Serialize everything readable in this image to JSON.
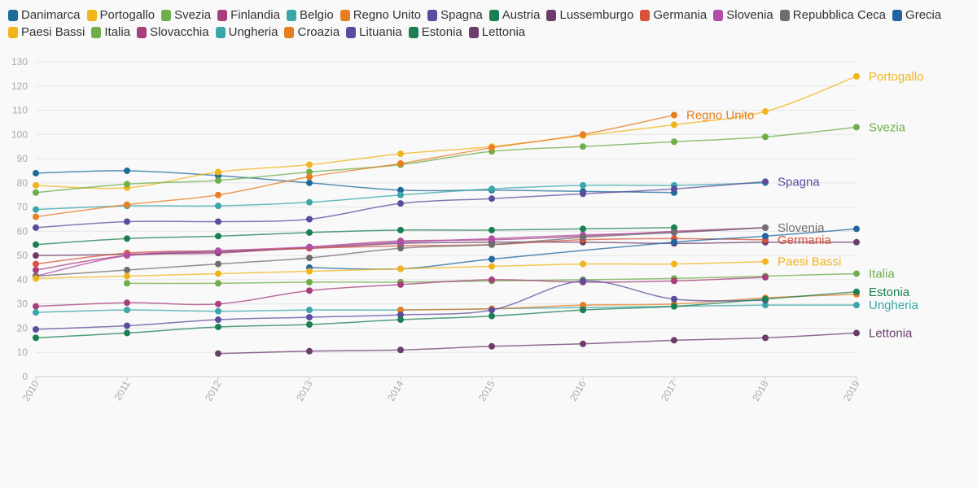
{
  "chart_data": {
    "type": "line",
    "title": "",
    "xlabel": "",
    "ylabel": "",
    "x": [
      2010,
      2011,
      2012,
      2013,
      2014,
      2015,
      2016,
      2017,
      2018,
      2019
    ],
    "xlim": [
      2010,
      2019
    ],
    "ylim": [
      0,
      130
    ],
    "yticks": [
      0,
      10,
      20,
      30,
      40,
      50,
      60,
      70,
      80,
      90,
      100,
      110,
      120,
      130
    ],
    "grid": true,
    "legend_position": "top",
    "series": [
      {
        "name": "Danimarca",
        "color": "#1f6b9a",
        "values": [
          84,
          85,
          83,
          80,
          77,
          77,
          76.5,
          76,
          null,
          null
        ]
      },
      {
        "name": "Portogallo",
        "color": "#f1b51c",
        "values": [
          79,
          78,
          84.5,
          87.5,
          92,
          95,
          99.5,
          104,
          109.5,
          124
        ],
        "end_label": "Portogallo"
      },
      {
        "name": "Svezia",
        "color": "#6fae4a",
        "values": [
          76,
          79.5,
          81,
          84.5,
          87.5,
          93,
          95,
          97,
          99,
          103
        ],
        "end_label": "Svezia"
      },
      {
        "name": "Finlandia",
        "color": "#a83e7c",
        "values": [
          44,
          50,
          51,
          53.5,
          56,
          56.5,
          58,
          60,
          61.5,
          null
        ]
      },
      {
        "name": "Belgio",
        "color": "#3aa6a8",
        "values": [
          69,
          70.5,
          70.5,
          72,
          75,
          77.5,
          79,
          79,
          80,
          null
        ]
      },
      {
        "name": "Regno Unito",
        "color": "#e67e22",
        "values": [
          66,
          71,
          75,
          82.5,
          88,
          94.5,
          100,
          108,
          null,
          null
        ],
        "end_label": "Regno Unito"
      },
      {
        "name": "Spagna",
        "color": "#5b4c9e",
        "values": [
          61.5,
          64,
          64,
          65,
          71.5,
          73.5,
          75.5,
          77.5,
          80.5,
          null
        ],
        "end_label": "Spagna"
      },
      {
        "name": "Austria",
        "color": "#1a7f52",
        "values": [
          54.5,
          57,
          58,
          59.5,
          60.5,
          60.5,
          61,
          61.5,
          null,
          null
        ]
      },
      {
        "name": "Lussemburgo",
        "color": "#6b3d6b",
        "values": [
          50,
          50.5,
          51.5,
          53,
          55,
          55.5,
          55.5,
          55,
          55.5,
          55.5
        ]
      },
      {
        "name": "Germania",
        "color": "#d9533b",
        "values": [
          46.5,
          51,
          52,
          53,
          54,
          54.5,
          56.5,
          57,
          56.5,
          null
        ],
        "end_label": "Germania"
      },
      {
        "name": "Slovenia",
        "color": "#b14fa8",
        "values": [
          41.5,
          50,
          52,
          53.5,
          55.5,
          57,
          58.5,
          59.5,
          61.5,
          null
        ]
      },
      {
        "name": "Repubblica Ceca",
        "color": "#6e6e6e",
        "values": [
          41.5,
          44,
          46.5,
          49,
          53,
          54.5,
          57.5,
          59.5,
          61.5,
          null
        ],
        "end_label": "Slovenia"
      },
      {
        "name": "Grecia",
        "color": "#2265a0",
        "values": [
          null,
          null,
          null,
          45,
          44.5,
          48.5,
          null,
          55.5,
          58,
          61
        ]
      },
      {
        "name": "Paesi Bassi",
        "color": "#f1b51c",
        "values": [
          40.5,
          41.5,
          42.5,
          43.5,
          44.5,
          45.5,
          46.5,
          46.5,
          47.5,
          null
        ],
        "end_label": "Paesi Bassi"
      },
      {
        "name": "Italia",
        "color": "#6fae4a",
        "values": [
          null,
          38.5,
          38.5,
          39,
          39,
          39.5,
          40,
          40.5,
          41.5,
          42.5
        ],
        "end_label": "Italia"
      },
      {
        "name": "Slovacchia",
        "color": "#a83e7c",
        "values": [
          29,
          30.5,
          30,
          35.5,
          38,
          40,
          39,
          39.5,
          41,
          null
        ]
      },
      {
        "name": "Ungheria",
        "color": "#3aa6a8",
        "values": [
          26.5,
          27.5,
          27,
          27.5,
          27.5,
          28,
          28.5,
          29,
          29.5,
          29.5
        ],
        "end_label": "Ungheria"
      },
      {
        "name": "Croazia",
        "color": "#e67e22",
        "values": [
          null,
          null,
          null,
          null,
          27.5,
          28,
          29.5,
          30,
          32.5,
          34
        ],
        "end_label": ""
      },
      {
        "name": "Lituania",
        "color": "#5b4c9e",
        "values": [
          19.5,
          21,
          23.5,
          24.5,
          25.5,
          27.5,
          39.5,
          32,
          31.5,
          null
        ]
      },
      {
        "name": "Estonia",
        "color": "#1a7f52",
        "values": [
          16,
          18,
          20.5,
          21.5,
          23.5,
          25,
          27.5,
          29,
          32,
          35
        ],
        "end_label": "Estonia"
      },
      {
        "name": "Lettonia",
        "color": "#6b3d6b",
        "values": [
          null,
          null,
          9.5,
          10.5,
          11,
          12.5,
          13.5,
          15,
          16,
          18
        ],
        "end_label": "Lettonia"
      }
    ]
  }
}
